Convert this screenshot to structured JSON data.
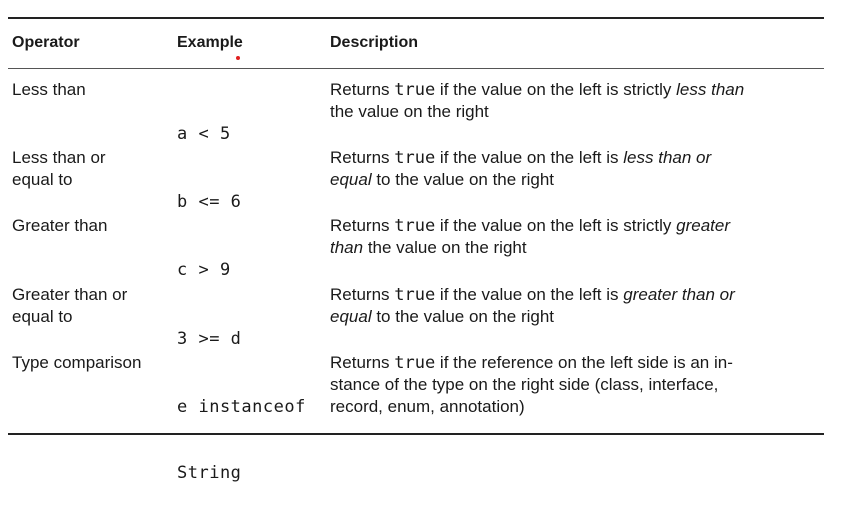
{
  "table": {
    "headers": {
      "operator": "Operator",
      "example": "Example",
      "description": "Description"
    },
    "rows": [
      {
        "operator": [
          "Less than"
        ],
        "example": [
          "a < 5"
        ],
        "desc": {
          "l1_a": "Returns ",
          "l1_code": "true",
          "l1_b": " if the value on the left is strictly ",
          "l1_em": "less than",
          "l2_em": "",
          "l2_b": "the value on the right"
        }
      },
      {
        "operator": [
          "Less than or",
          "equal to"
        ],
        "example": [
          "b <= 6"
        ],
        "desc": {
          "l1_a": "Returns ",
          "l1_code": "true",
          "l1_b": " if the value on the left is ",
          "l1_em": "less than or",
          "l2_em": "equal",
          "l2_b": " to the value on the right"
        }
      },
      {
        "operator": [
          "Greater than"
        ],
        "example": [
          "c > 9"
        ],
        "desc": {
          "l1_a": "Returns ",
          "l1_code": "true",
          "l1_b": " if the value on the left is strictly ",
          "l1_em": "greater",
          "l2_em": "than",
          "l2_b": " the value on the right"
        }
      },
      {
        "operator": [
          "Greater than or",
          "equal to"
        ],
        "example": [
          "3 >= d"
        ],
        "desc": {
          "l1_a": "Returns ",
          "l1_code": "true",
          "l1_b": " if the value on the left is ",
          "l1_em": "greater than or",
          "l2_em": "equal",
          "l2_b": " to the value on the right"
        }
      },
      {
        "operator": [
          "Type comparison"
        ],
        "example": [
          "e instanceof",
          "String"
        ],
        "desc": {
          "l1_a": "Returns ",
          "l1_code": "true",
          "l1_b": " if the reference on the left side is an in-",
          "l2_b": "stance of the type on the right side (class, interface,",
          "l3_b": "record, enum, annotation)"
        }
      }
    ]
  }
}
